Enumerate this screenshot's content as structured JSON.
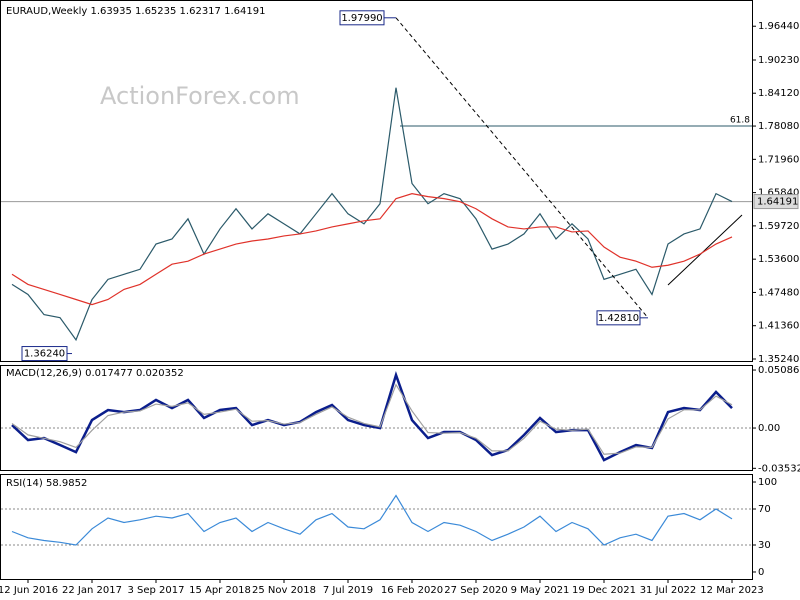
{
  "chart_data": [
    {
      "type": "line",
      "title": "EURAUD,Weekly  1.63935 1.65235 1.62317 1.64191",
      "watermark": "ActionForex.com",
      "series": [
        {
          "color": "#2b5a6a",
          "values": [
            1.4896,
            1.4711,
            1.434,
            1.4284,
            1.3876,
            1.4618,
            1.4989,
            1.5082,
            1.5174,
            1.5638,
            1.5731,
            1.6102,
            1.5453,
            1.5916,
            1.6287,
            1.5916,
            1.6194,
            1.6009,
            1.5824,
            1.6194,
            1.6565,
            1.6194,
            1.6009,
            1.638,
            1.8513,
            1.6751,
            1.638,
            1.6565,
            1.6473,
            1.6102,
            1.5545,
            1.5638,
            1.5824,
            1.6194,
            1.5731,
            1.6009,
            1.5731,
            1.4989,
            1.5082,
            1.5174,
            1.4711,
            1.5638,
            1.5824,
            1.5916,
            1.6565,
            1.6419
          ]
        },
        {
          "color": "#e0322a",
          "values": [
            1.5082,
            1.4896,
            1.4804,
            1.4711,
            1.4618,
            1.4525,
            1.4618,
            1.4804,
            1.4896,
            1.5082,
            1.5267,
            1.5323,
            1.5453,
            1.5545,
            1.5638,
            1.5694,
            1.5731,
            1.5787,
            1.5824,
            1.5879,
            1.5953,
            1.6009,
            1.6065,
            1.6102,
            1.6473,
            1.6565,
            1.651,
            1.6473,
            1.6417,
            1.6287,
            1.6102,
            1.5953,
            1.5916,
            1.5953,
            1.5953,
            1.5861,
            1.5879,
            1.5583,
            1.5397,
            1.5323,
            1.5211,
            1.5248,
            1.5323,
            1.5453,
            1.5638,
            1.5768
          ]
        }
      ],
      "ylim": [
        1.3487,
        2.0108
      ],
      "yticks": [
        {
          "value": 1.3524,
          "label": "1.35240"
        },
        {
          "value": 1.4136,
          "label": "1.41360"
        },
        {
          "value": 1.4748,
          "label": "1.47480"
        },
        {
          "value": 1.536,
          "label": "1.53600"
        },
        {
          "value": 1.5972,
          "label": "1.59720"
        },
        {
          "value": 1.6584,
          "label": "1.65840"
        },
        {
          "value": 1.7196,
          "label": "1.71960"
        },
        {
          "value": 1.7808,
          "label": "1.78080"
        },
        {
          "value": 1.8412,
          "label": "1.84120"
        },
        {
          "value": 1.9023,
          "label": "1.90230"
        },
        {
          "value": 1.9644,
          "label": "1.96440"
        }
      ],
      "annotations": [
        {
          "label": "1.97990",
          "value": 1.9799
        },
        {
          "label": "1.42810",
          "value": 1.4281
        },
        {
          "label": "1.36240",
          "value": 1.3624
        }
      ],
      "levels": [
        {
          "label": "61.8",
          "value": 1.7808
        }
      ],
      "last_price": {
        "label": "1.64191",
        "value": 1.64191
      }
    },
    {
      "type": "line",
      "title": "MACD(12,26,9) 0.017477 0.020352",
      "series": [
        {
          "color": "#0b1e8c",
          "values": [
            0.0026,
            -0.0105,
            -0.0088,
            -0.0149,
            -0.0211,
            0.007,
            0.0158,
            0.014,
            0.0158,
            0.0246,
            0.0175,
            0.0246,
            0.0088,
            0.0158,
            0.0175,
            0.0026,
            0.007,
            0.0026,
            0.0053,
            0.014,
            0.0202,
            0.007,
            0.0026,
            0.0,
            0.0465,
            0.007,
            -0.0088,
            -0.0035,
            -0.0035,
            -0.0105,
            -0.0237,
            -0.0193,
            -0.0061,
            0.0088,
            -0.0035,
            -0.0018,
            -0.0018,
            -0.0281,
            -0.0211,
            -0.0149,
            -0.0175,
            0.014,
            0.0175,
            0.0158,
            0.0316,
            0.0175
          ]
        },
        {
          "color": "#a0a0a0",
          "values": [
            0.004,
            -0.006,
            -0.009,
            -0.012,
            -0.017,
            -0.002,
            0.011,
            0.014,
            0.015,
            0.021,
            0.019,
            0.022,
            0.012,
            0.014,
            0.0165,
            0.006,
            0.0065,
            0.0035,
            0.0048,
            0.012,
            0.0185,
            0.0095,
            0.004,
            0.001,
            0.038,
            0.015,
            -0.004,
            -0.0045,
            -0.004,
            -0.009,
            -0.02,
            -0.02,
            -0.009,
            0.006,
            -0.001,
            -0.002,
            -0.001,
            -0.023,
            -0.022,
            -0.0165,
            -0.017,
            0.008,
            0.016,
            0.016,
            0.028,
            0.0204
          ]
        }
      ],
      "ylim": [
        -0.0368,
        0.0544
      ],
      "yticks": [
        0.050863,
        {
          "value": 0,
          "label": "0.00"
        },
        -0.035322
      ]
    },
    {
      "type": "line",
      "title": "RSI(14) 58.9852",
      "series": [
        {
          "color": "#3b8ad8",
          "values": [
            45,
            38,
            35,
            33,
            30,
            48,
            60,
            55,
            58,
            62,
            60,
            65,
            45,
            55,
            60,
            45,
            55,
            48,
            42,
            58,
            65,
            50,
            48,
            58,
            85,
            55,
            45,
            55,
            52,
            45,
            35,
            42,
            50,
            62,
            45,
            55,
            48,
            30,
            38,
            42,
            35,
            62,
            65,
            58,
            70,
            58.9852
          ]
        }
      ],
      "ylim": [
        -7.8,
        107.8
      ],
      "yticks": [
        0,
        30,
        70,
        100
      ],
      "categories": [
        null,
        "12 Jun 2016",
        null,
        null,
        null,
        "22 Jan 2017",
        null,
        null,
        null,
        "3 Sep 2017",
        null,
        null,
        null,
        "15 Apr 2018",
        null,
        null,
        null,
        "25 Nov 2018",
        null,
        null,
        null,
        "7 Jul 2019",
        null,
        null,
        null,
        "16 Feb 2020",
        null,
        null,
        null,
        "27 Sep 2020",
        null,
        null,
        null,
        "9 May 2021",
        null,
        null,
        null,
        "19 Dec 2021",
        null,
        null,
        null,
        "31 Jul 2022",
        null,
        null,
        null,
        "12 Mar 2023"
      ]
    }
  ]
}
